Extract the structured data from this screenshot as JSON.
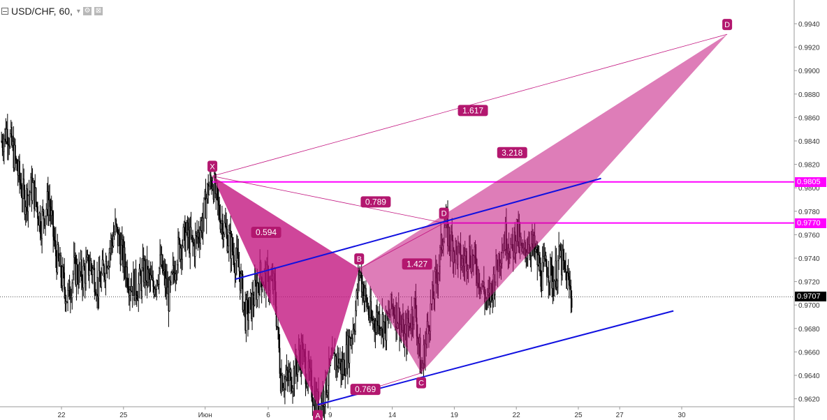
{
  "legend": {
    "symbol_text": "USD/CHF, 60,",
    "caret_icon": "▾",
    "settings_icon": "⚙",
    "close_icon": "⊠"
  },
  "colors": {
    "pattern_fill": "#c2127e",
    "pattern_label_bg": "#b3176f",
    "channel": "#1010e0",
    "hline": "#ff00ff",
    "candles": "#000000",
    "axis_text": "#333333",
    "current_price_bg": "#000000"
  },
  "price_boxes": {
    "hline_top": "0.9805",
    "hline_bottom": "0.9770",
    "current": "0.9707"
  },
  "chart_data": {
    "type": "candlestick",
    "symbol": "USD/CHF",
    "interval": "60",
    "y_ticks": [
      "0.9940",
      "0.9920",
      "0.9900",
      "0.9880",
      "0.9860",
      "0.9840",
      "0.9820",
      "0.9800",
      "0.9780",
      "0.9760",
      "0.9740",
      "0.9720",
      "0.9700",
      "0.9680",
      "0.9660",
      "0.9640",
      "0.9620"
    ],
    "x_ticks": [
      {
        "label": "22",
        "day": 0
      },
      {
        "label": "25",
        "day": 3
      },
      {
        "label": "Июн",
        "day": 6.95
      },
      {
        "label": "6",
        "day": 10
      },
      {
        "label": "9",
        "day": 13
      },
      {
        "label": "14",
        "day": 16
      },
      {
        "label": "19",
        "day": 19
      },
      {
        "label": "22",
        "day": 22
      },
      {
        "label": "25",
        "day": 25
      },
      {
        "label": "27",
        "day": 27
      },
      {
        "label": "30",
        "day": 30
      }
    ],
    "ylim": [
      0.9602,
      0.9955
    ],
    "close_path": [
      [
        -2.9,
        0.984
      ],
      [
        -2.6,
        0.985
      ],
      [
        -2.2,
        0.982
      ],
      [
        -1.8,
        0.979
      ],
      [
        -1.4,
        0.98
      ],
      [
        -1.0,
        0.977
      ],
      [
        -0.6,
        0.979
      ],
      [
        -0.3,
        0.9745
      ],
      [
        0.0,
        0.9725
      ],
      [
        0.3,
        0.9705
      ],
      [
        0.6,
        0.973
      ],
      [
        1.0,
        0.9725
      ],
      [
        1.4,
        0.9735
      ],
      [
        1.8,
        0.9715
      ],
      [
        2.2,
        0.974
      ],
      [
        2.6,
        0.9765
      ],
      [
        2.9,
        0.9745
      ],
      [
        3.3,
        0.972
      ],
      [
        3.7,
        0.9715
      ],
      [
        4.0,
        0.973
      ],
      [
        4.4,
        0.9715
      ],
      [
        4.8,
        0.9735
      ],
      [
        5.2,
        0.9705
      ],
      [
        5.6,
        0.9745
      ],
      [
        6.0,
        0.976
      ],
      [
        6.4,
        0.975
      ],
      [
        6.8,
        0.977
      ],
      [
        7.1,
        0.98
      ],
      [
        7.3,
        0.9808
      ],
      [
        7.6,
        0.978
      ],
      [
        7.9,
        0.9765
      ],
      [
        8.2,
        0.975
      ],
      [
        8.6,
        0.973
      ],
      [
        8.9,
        0.969
      ],
      [
        9.2,
        0.97
      ],
      [
        9.6,
        0.9725
      ],
      [
        10.0,
        0.972
      ],
      [
        10.3,
        0.9715
      ],
      [
        10.6,
        0.964
      ],
      [
        10.9,
        0.9635
      ],
      [
        11.2,
        0.964
      ],
      [
        11.6,
        0.966
      ],
      [
        11.9,
        0.964
      ],
      [
        12.1,
        0.963
      ],
      [
        12.4,
        0.9614
      ],
      [
        12.7,
        0.9625
      ],
      [
        13.0,
        0.9645
      ],
      [
        13.3,
        0.9655
      ],
      [
        13.6,
        0.9645
      ],
      [
        13.9,
        0.9665
      ],
      [
        14.2,
        0.969
      ],
      [
        14.4,
        0.9731
      ],
      [
        14.7,
        0.9705
      ],
      [
        15.0,
        0.9685
      ],
      [
        15.4,
        0.969
      ],
      [
        15.7,
        0.968
      ],
      [
        16.0,
        0.97
      ],
      [
        16.3,
        0.969
      ],
      [
        16.6,
        0.967
      ],
      [
        16.9,
        0.969
      ],
      [
        17.1,
        0.97
      ],
      [
        17.4,
        0.9642
      ],
      [
        17.7,
        0.968
      ],
      [
        18.0,
        0.971
      ],
      [
        18.3,
        0.974
      ],
      [
        18.5,
        0.977
      ],
      [
        18.8,
        0.9755
      ],
      [
        19.1,
        0.9745
      ],
      [
        19.4,
        0.9735
      ],
      [
        19.7,
        0.9745
      ],
      [
        20.0,
        0.9735
      ],
      [
        20.3,
        0.972
      ],
      [
        20.6,
        0.97
      ],
      [
        20.9,
        0.972
      ],
      [
        21.2,
        0.9745
      ],
      [
        21.5,
        0.976
      ],
      [
        21.8,
        0.9745
      ],
      [
        22.0,
        0.9765
      ],
      [
        22.3,
        0.974
      ],
      [
        22.6,
        0.9755
      ],
      [
        22.9,
        0.9745
      ],
      [
        23.2,
        0.9725
      ],
      [
        23.5,
        0.9735
      ],
      [
        23.8,
        0.972
      ],
      [
        24.1,
        0.974
      ],
      [
        24.4,
        0.9725
      ],
      [
        24.7,
        0.9707
      ]
    ],
    "pattern": {
      "points": {
        "X": {
          "day": 7.3,
          "price": 0.981
        },
        "A": {
          "day": 12.4,
          "price": 0.9614
        },
        "B": {
          "day": 14.4,
          "price": 0.9731
        },
        "C": {
          "day": 17.4,
          "price": 0.9642
        },
        "D": {
          "day": 18.5,
          "price": 0.977
        },
        "D_ext": {
          "day": 32.2,
          "price": 0.9931
        }
      },
      "labels": [
        "X",
        "A",
        "B",
        "C",
        "D",
        "D"
      ],
      "ratios": [
        {
          "text": "0.594",
          "day": 9.9,
          "price": 0.9762
        },
        {
          "text": "0.789",
          "day": 15.2,
          "price": 0.9788
        },
        {
          "text": "1.427",
          "day": 17.2,
          "price": 0.9735
        },
        {
          "text": "3.218",
          "day": 21.8,
          "price": 0.983
        },
        {
          "text": "1.617",
          "day": 19.9,
          "price": 0.9866
        },
        {
          "text": "0.769",
          "day": 14.7,
          "price": 0.9628
        }
      ]
    },
    "channel": {
      "upper": [
        [
          8.4,
          0.9722
        ],
        [
          26.1,
          0.9808
        ]
      ],
      "lower": [
        [
          12.4,
          0.9615
        ],
        [
          29.6,
          0.9695
        ]
      ]
    },
    "horizontal_lines": [
      {
        "price": 0.9805,
        "from_day": 7.3
      },
      {
        "price": 0.977,
        "from_day": 18.5
      }
    ],
    "current_price": 0.9707
  }
}
